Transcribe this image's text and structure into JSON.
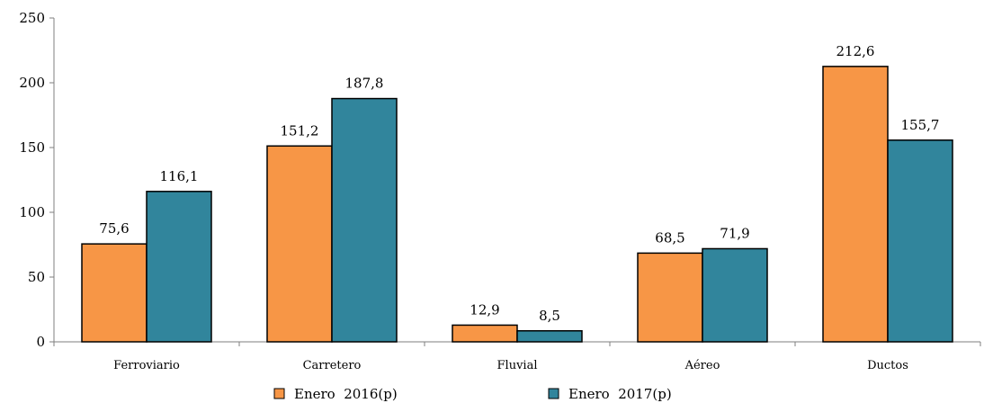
{
  "chart_data": {
    "type": "bar",
    "categories": [
      "Ferroviario",
      "Carretero",
      "Fluvial",
      "Aéreo",
      "Ductos"
    ],
    "series": [
      {
        "name": "Enero  2016(p)",
        "color": "#f79646",
        "values": [
          75.6,
          151.2,
          12.9,
          68.5,
          212.6
        ],
        "labels": [
          "75,6",
          "151,2",
          "12,9",
          "68,5",
          "212,6"
        ]
      },
      {
        "name": "Enero  2017(p)",
        "color": "#31859c",
        "values": [
          116.1,
          187.8,
          8.5,
          71.9,
          155.7
        ],
        "labels": [
          "116,1",
          "187,8",
          "8,5",
          "71,9",
          "155,7"
        ]
      }
    ],
    "ylim": [
      0,
      250
    ],
    "yticks": [
      0,
      50,
      100,
      150,
      200,
      250
    ],
    "xlabel": "",
    "ylabel": "",
    "title": "",
    "grid": false,
    "legend": "bottom"
  }
}
